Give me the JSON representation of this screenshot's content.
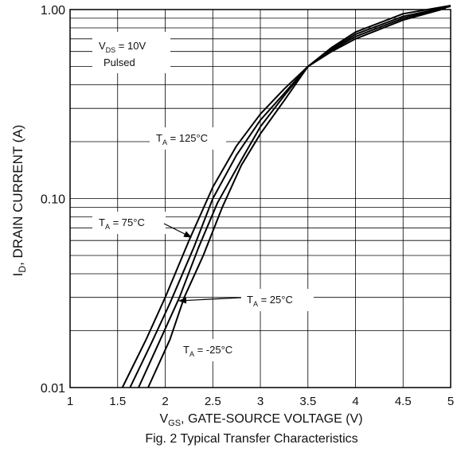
{
  "chart_data": {
    "type": "line",
    "title": "",
    "caption": "Fig. 2  Typical Transfer Characteristics",
    "xlabel": {
      "main": "V",
      "sub": "GS",
      "rest": ", GATE-SOURCE VOLTAGE (V)"
    },
    "ylabel": {
      "main": "I",
      "sub": "D",
      "rest": ", DRAIN CURRENT (A)"
    },
    "xlim": [
      1,
      5
    ],
    "ylim": [
      0.01,
      1.0
    ],
    "yscale": "log",
    "grid": true,
    "x_ticks": [
      "1",
      "1.5",
      "2",
      "2.5",
      "3",
      "3.5",
      "4",
      "4.5",
      "5"
    ],
    "y_ticks": [
      "0.01",
      "0.10",
      "1.00"
    ],
    "conditions": {
      "line1": {
        "main": "V",
        "sub": "DS",
        "rest": " = 10V"
      },
      "line2": "Pulsed"
    },
    "series": [
      {
        "name": {
          "main": "T",
          "sub": "A",
          "rest": " = 125°C"
        },
        "x": [
          1.55,
          1.8,
          2.0,
          2.25,
          2.5,
          2.75,
          3.0,
          3.25,
          3.5,
          3.75,
          4.0,
          4.5,
          4.9
        ],
        "y": [
          0.01,
          0.018,
          0.03,
          0.06,
          0.115,
          0.19,
          0.28,
          0.38,
          0.5,
          0.6,
          0.7,
          0.88,
          1.0
        ]
      },
      {
        "name": {
          "main": "T",
          "sub": "A",
          "rest": " = 75°C"
        },
        "x": [
          1.63,
          1.85,
          2.05,
          2.3,
          2.5,
          2.75,
          3.0,
          3.25,
          3.5,
          3.75,
          4.0,
          4.5,
          4.95
        ],
        "y": [
          0.01,
          0.017,
          0.028,
          0.055,
          0.1,
          0.17,
          0.26,
          0.36,
          0.5,
          0.61,
          0.72,
          0.9,
          1.02
        ]
      },
      {
        "name": {
          "main": "T",
          "sub": "A",
          "rest": " = 25°C"
        },
        "x": [
          1.72,
          1.95,
          2.15,
          2.35,
          2.55,
          2.8,
          3.0,
          3.25,
          3.5,
          3.75,
          4.0,
          4.5,
          5.0
        ],
        "y": [
          0.01,
          0.018,
          0.03,
          0.055,
          0.095,
          0.16,
          0.24,
          0.35,
          0.5,
          0.62,
          0.74,
          0.92,
          1.04
        ]
      },
      {
        "name": {
          "main": "T",
          "sub": "A",
          "rest": " = -25°C"
        },
        "x": [
          1.82,
          2.05,
          2.2,
          2.4,
          2.6,
          2.8,
          3.0,
          3.25,
          3.5,
          3.75,
          4.0,
          4.5,
          5.0
        ],
        "y": [
          0.01,
          0.018,
          0.03,
          0.05,
          0.09,
          0.15,
          0.22,
          0.33,
          0.5,
          0.63,
          0.76,
          0.95,
          1.05
        ]
      }
    ]
  }
}
